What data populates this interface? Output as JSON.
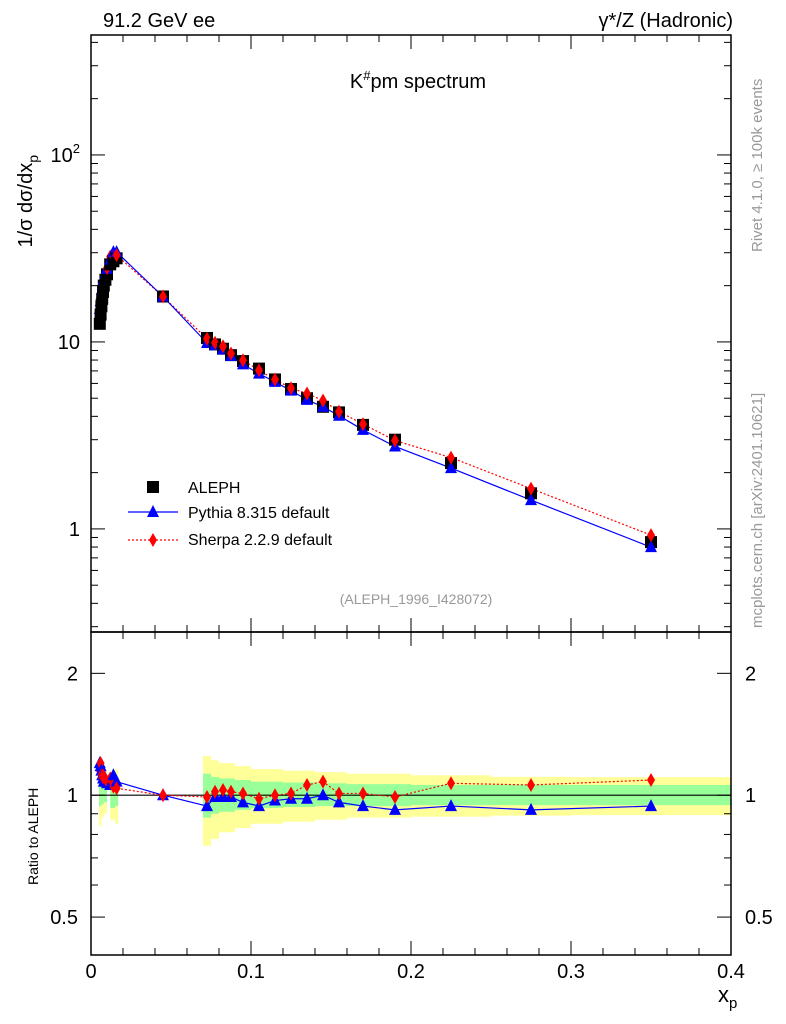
{
  "chart_data": {
    "type": "line",
    "header_left": "91.2 GeV ee",
    "header_right": "γ*/Z (Hadronic)",
    "title": "K#pm spectrum",
    "title_base": "K",
    "title_sup": "#",
    "title_rest": "pm spectrum",
    "ylabel": "1/σ  dσ/dx",
    "ylabel_sub": "p",
    "ratio_ylabel": "Ratio to ALEPH",
    "xlabel": "x",
    "xlabel_sub": "p",
    "analysis": "(ALEPH_1996_I428072)",
    "side_text_1": "Rivet 4.1.0, ≥ 100k events",
    "side_text_2": "mcplots.cern.ch [arXiv:2401.10621]",
    "xlim": [
      0,
      0.4
    ],
    "ylim": [
      0.281,
      438
    ],
    "yscale": "log",
    "ratio_ylim": [
      0.403,
      2.53
    ],
    "x_ticks": [
      "0",
      "0.1",
      "0.2",
      "0.3",
      "0.4"
    ],
    "x_tick_values": [
      0,
      0.1,
      0.2,
      0.3,
      0.4
    ],
    "y_ticks": [
      {
        "v": 100,
        "base": "10",
        "sup": "2"
      },
      {
        "v": 10,
        "base": "10",
        "sup": ""
      },
      {
        "v": 1,
        "base": "1",
        "sup": ""
      }
    ],
    "ratio_ticks": [
      {
        "v": 2,
        "label": "2"
      },
      {
        "v": 1,
        "label": "1"
      },
      {
        "v": 0.5,
        "label": "0.5"
      }
    ],
    "legend": [
      "ALEPH",
      "Pythia 8.315 default",
      "Sherpa 2.2.9 default"
    ],
    "legend_position": "lower-left",
    "colors": {
      "aleph": "#000000",
      "pythia": "#0000ff",
      "sherpa": "#ff0000",
      "band_total": "#ffff99",
      "band_stat": "#99ff99"
    },
    "x": [
      0.0055,
      0.006,
      0.0065,
      0.007,
      0.0075,
      0.008,
      0.009,
      0.01,
      0.012,
      0.014,
      0.016,
      0.045,
      0.0725,
      0.0775,
      0.0825,
      0.0875,
      0.095,
      0.105,
      0.115,
      0.125,
      0.135,
      0.145,
      0.155,
      0.17,
      0.19,
      0.225,
      0.275,
      0.35
    ],
    "series": [
      {
        "name": "ALEPH",
        "values": [
          12.5,
          14,
          15.5,
          17,
          18.5,
          20,
          21.5,
          23,
          26,
          27,
          28,
          17.5,
          10.5,
          9.7,
          9.2,
          8.5,
          7.9,
          7.2,
          6.3,
          5.6,
          5.0,
          4.5,
          4.2,
          3.6,
          3.0,
          2.25,
          1.55,
          0.85
        ]
      },
      {
        "name": "Pythia 8.315 default",
        "ratio": [
          1.2,
          1.18,
          1.15,
          1.12,
          1.1,
          1.08,
          1.08,
          1.07,
          1.06,
          1.12,
          1.08,
          1.0,
          0.94,
          0.99,
          0.99,
          0.99,
          0.96,
          0.94,
          0.97,
          0.98,
          0.98,
          1.0,
          0.96,
          0.94,
          0.92,
          0.94,
          0.92,
          0.94
        ]
      },
      {
        "name": "Sherpa 2.2.9 default",
        "ratio": [
          1.15,
          1.2,
          1.12,
          1.1,
          1.12,
          1.1,
          1.08,
          1.08,
          1.1,
          1.05,
          1.04,
          1.0,
          0.99,
          1.02,
          1.03,
          1.02,
          1.01,
          0.98,
          1.0,
          1.01,
          1.06,
          1.08,
          1.01,
          1.01,
          0.99,
          1.07,
          1.06,
          1.09
        ]
      }
    ],
    "ratio_bands": [
      [
        0.005,
        0.0065,
        0.84,
        1.22,
        0.94,
        1.12
      ],
      [
        0.0065,
        0.008,
        0.88,
        1.18,
        0.95,
        1.09
      ],
      [
        0.008,
        0.01,
        0.9,
        1.15,
        0.96,
        1.07
      ],
      [
        0.012,
        0.015,
        0.87,
        1.13,
        0.93,
        1.08
      ],
      [
        0.015,
        0.017,
        0.85,
        1.16,
        0.94,
        1.1
      ],
      [
        0.07,
        0.075,
        0.75,
        1.25,
        0.88,
        1.13
      ],
      [
        0.075,
        0.08,
        0.78,
        1.22,
        0.9,
        1.11
      ],
      [
        0.08,
        0.09,
        0.81,
        1.2,
        0.91,
        1.1
      ],
      [
        0.09,
        0.1,
        0.83,
        1.18,
        0.92,
        1.09
      ],
      [
        0.1,
        0.12,
        0.85,
        1.16,
        0.93,
        1.08
      ],
      [
        0.12,
        0.14,
        0.86,
        1.15,
        0.935,
        1.075
      ],
      [
        0.14,
        0.16,
        0.87,
        1.14,
        0.94,
        1.07
      ],
      [
        0.16,
        0.2,
        0.88,
        1.13,
        0.94,
        1.065
      ],
      [
        0.2,
        0.25,
        0.885,
        1.12,
        0.945,
        1.06
      ],
      [
        0.25,
        0.3,
        0.89,
        1.11,
        0.945,
        1.06
      ],
      [
        0.3,
        0.4,
        0.893,
        1.108,
        0.945,
        1.06
      ]
    ]
  }
}
